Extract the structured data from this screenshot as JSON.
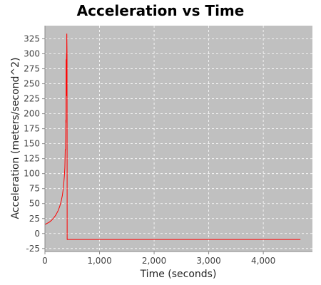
{
  "chart_data": {
    "type": "line",
    "title": "Acceleration vs Time",
    "xlabel": "Time (seconds)",
    "ylabel": "Acceleration (meters/second^2)",
    "xlim": [
      0,
      4900
    ],
    "ylim": [
      -30,
      347
    ],
    "x_ticks": [
      0,
      1000,
      2000,
      3000,
      4000
    ],
    "x_tick_labels": [
      "0",
      "1,000",
      "2,000",
      "3,000",
      "4,000"
    ],
    "y_ticks": [
      -25,
      0,
      25,
      50,
      75,
      100,
      125,
      150,
      175,
      200,
      225,
      250,
      275,
      300,
      325
    ],
    "y_tick_labels": [
      "-25",
      "0",
      "25",
      "50",
      "75",
      "100",
      "125",
      "150",
      "175",
      "200",
      "225",
      "250",
      "275",
      "300",
      "325"
    ],
    "grid": true,
    "legend": "none",
    "colors": {
      "plot_background": "#c0c0c0",
      "grid": "#ffffff",
      "series": "#ff0000"
    },
    "series": [
      {
        "x": [
          0,
          40,
          80,
          120,
          160,
          200,
          240,
          270,
          300,
          320,
          340,
          355,
          365,
          372,
          378,
          383,
          386,
          388,
          390,
          391,
          393,
          394,
          396,
          397,
          399,
          400,
          401,
          402,
          404,
          405,
          407,
          407,
          4680
        ],
        "y": [
          15,
          17,
          19,
          22,
          26,
          31,
          38,
          45,
          55,
          64,
          78,
          95,
          110,
          140,
          140,
          190,
          185,
          290,
          290,
          230,
          230,
          290,
          300,
          280,
          280,
          333,
          333,
          320,
          305,
          300,
          -10,
          -10,
          -10
        ]
      }
    ]
  }
}
